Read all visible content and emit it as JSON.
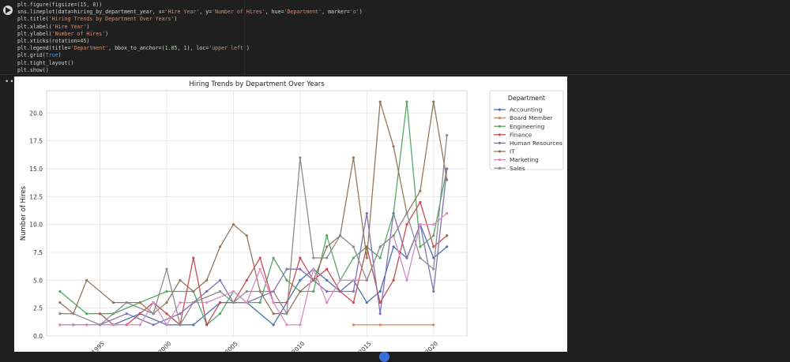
{
  "code_cell": {
    "lines": [
      "plt.figure(figsize=(15, 8))",
      "sns.lineplot(data=hiring_by_department_year, x='Hire Year', y='Number of Hires', hue='Department', marker='o')",
      "plt.title('Hiring Trends by Department Over Years')",
      "plt.xlabel('Hire Year')",
      "plt.ylabel('Number of Hires')",
      "plt.xticks(rotation=45)",
      "plt.legend(title='Department', bbox_to_anchor=(1.05, 1), loc='upper left')",
      "plt.grid(True)",
      "plt.tight_layout()",
      "plt.show()"
    ]
  },
  "output_menu_glyph": "•••",
  "run_icon": "play-icon",
  "chart_data": {
    "type": "line",
    "title": "Hiring Trends by Department Over Years",
    "xlabel": "",
    "ylabel": "Number of Hires",
    "xlim": [
      1991,
      2022.5
    ],
    "ylim": [
      0,
      22
    ],
    "yticks": [
      0.0,
      2.5,
      5.0,
      7.5,
      10.0,
      12.5,
      15.0,
      17.5,
      20.0
    ],
    "xticks": [
      1995,
      2000,
      2005,
      2010,
      2015,
      2020
    ],
    "xtick_rotation": 45,
    "grid": true,
    "legend_title": "Department",
    "legend_position": "right-outside-upper",
    "marker": "o",
    "series": [
      {
        "name": "Accounting",
        "color": "#4c72b0",
        "x": [
          1992,
          1994,
          1996,
          1998,
          2000,
          2002,
          2004,
          2006,
          2008,
          2009,
          2010,
          2011,
          2012,
          2013,
          2014,
          2015,
          2016,
          2017,
          2018,
          2019,
          2020,
          2021
        ],
        "y": [
          1,
          1,
          1,
          2,
          1,
          1,
          3,
          3,
          1,
          3,
          5,
          6,
          5,
          4,
          5,
          3,
          4,
          8,
          7,
          10,
          7,
          8
        ]
      },
      {
        "name": "Board Member",
        "color": "#dd8452",
        "x": [
          2014,
          2016,
          2020
        ],
        "y": [
          1,
          1,
          1
        ]
      },
      {
        "name": "Engineering",
        "color": "#55a868",
        "x": [
          1992,
          1994,
          1996,
          1998,
          2000,
          2002,
          2003,
          2004,
          2005,
          2006,
          2007,
          2008,
          2009,
          2010,
          2011,
          2012,
          2013,
          2014,
          2015,
          2016,
          2017,
          2018,
          2019,
          2020,
          2021
        ],
        "y": [
          4,
          2,
          2,
          3,
          4,
          4,
          1,
          2,
          4,
          3,
          3,
          7,
          5,
          4,
          4,
          9,
          5,
          7,
          8,
          7,
          11,
          21,
          8,
          9,
          15
        ]
      },
      {
        "name": "Finance",
        "color": "#c44e52",
        "x": [
          1995,
          1996,
          1997,
          1998,
          1999,
          2000,
          2001,
          2002,
          2003,
          2004,
          2005,
          2006,
          2007,
          2008,
          2009,
          2010,
          2011,
          2012,
          2013,
          2014,
          2015,
          2016,
          2017,
          2018,
          2019,
          2020,
          2021
        ],
        "y": [
          2,
          1,
          1,
          2,
          3,
          2,
          1,
          7,
          1,
          3,
          3,
          5,
          7,
          3,
          3,
          7,
          5,
          6,
          4,
          3,
          8,
          3,
          5,
          10,
          12,
          8,
          9
        ]
      },
      {
        "name": "Human Resources",
        "color": "#8172b3",
        "x": [
          1993,
          1995,
          1997,
          1999,
          2001,
          2003,
          2004,
          2005,
          2006,
          2008,
          2009,
          2010,
          2012,
          2014,
          2015,
          2016,
          2017,
          2018,
          2019,
          2020,
          2021
        ],
        "y": [
          1,
          1,
          2,
          1,
          2,
          4,
          5,
          3,
          3,
          4,
          6,
          6,
          4,
          4,
          11,
          2,
          11,
          7,
          10,
          4,
          15
        ]
      },
      {
        "name": "IT",
        "color": "#937860",
        "x": [
          1992,
          1993,
          1994,
          1996,
          1998,
          1999,
          2000,
          2001,
          2002,
          2003,
          2004,
          2005,
          2006,
          2007,
          2008,
          2009,
          2010,
          2011,
          2012,
          2013,
          2014,
          2015,
          2016,
          2017,
          2018,
          2019,
          2020,
          2021
        ],
        "y": [
          3,
          2,
          5,
          3,
          3,
          2,
          3,
          5,
          4,
          5,
          8,
          10,
          9,
          4,
          2,
          2,
          4,
          5,
          8,
          9,
          16,
          7,
          21,
          17,
          11,
          13,
          21,
          14
        ]
      },
      {
        "name": "Marketing",
        "color": "#da8bc3",
        "x": [
          1992,
          1994,
          1996,
          1998,
          1999,
          2000,
          2001,
          2003,
          2005,
          2006,
          2007,
          2008,
          2009,
          2010,
          2011,
          2012,
          2013,
          2014,
          2015,
          2016,
          2017,
          2018,
          2019,
          2020,
          2021
        ],
        "y": [
          1,
          1,
          1,
          1,
          3,
          1,
          3,
          3,
          4,
          3,
          6,
          3,
          1,
          1,
          6,
          3,
          5,
          5,
          5,
          8,
          9,
          5,
          10,
          10,
          11
        ]
      },
      {
        "name": "Sales",
        "color": "#8c8c8c",
        "x": [
          1992,
          1993,
          1995,
          1997,
          1999,
          2000,
          2001,
          2002,
          2004,
          2005,
          2006,
          2008,
          2009,
          2010,
          2011,
          2012,
          2013,
          2014,
          2015,
          2016,
          2017,
          2018,
          2019,
          2020,
          2021
        ],
        "y": [
          2,
          2,
          1,
          3,
          2,
          6,
          1,
          3,
          4,
          3,
          4,
          4,
          2,
          16,
          7,
          7,
          9,
          8,
          5,
          8,
          9,
          11,
          7,
          6,
          18
        ]
      }
    ]
  }
}
